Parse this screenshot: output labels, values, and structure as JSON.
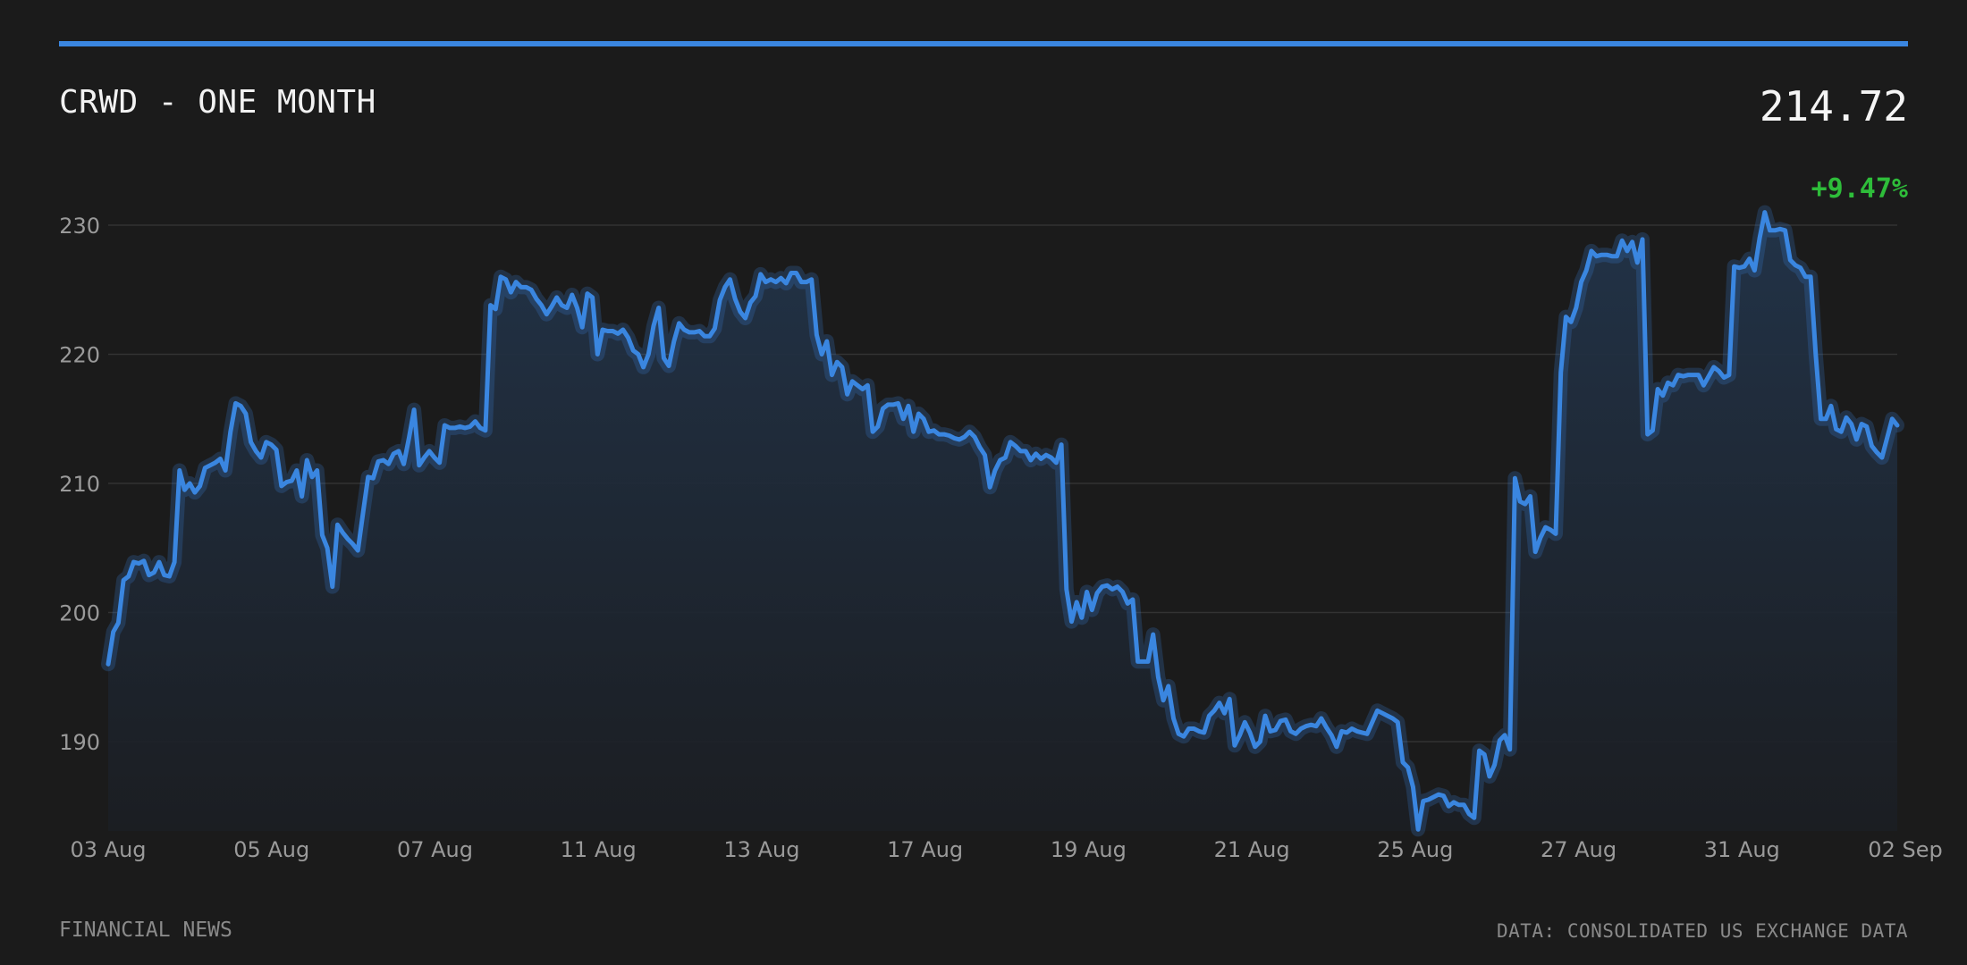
{
  "header": {
    "title": "CRWD - ONE MONTH",
    "price": "214.72",
    "change": "+9.47%"
  },
  "footer": {
    "source_left": "FINANCIAL NEWS",
    "source_right": "DATA: CONSOLIDATED US EXCHANGE DATA"
  },
  "colors": {
    "background": "#1b1b1b",
    "accent": "#3a86e0",
    "positive": "#2ebd3a",
    "grid": "#333333"
  },
  "chart_data": {
    "type": "area",
    "title": "CRWD - ONE MONTH",
    "xlabel": "",
    "ylabel": "",
    "ylim": [
      183,
      231
    ],
    "yticks": [
      190,
      200,
      210,
      220,
      230
    ],
    "grid": "horizontal",
    "x_tick_labels": [
      "03 Aug",
      "05 Aug",
      "07 Aug",
      "11 Aug",
      "13 Aug",
      "17 Aug",
      "19 Aug",
      "21 Aug",
      "25 Aug",
      "27 Aug",
      "31 Aug",
      "02 Sep"
    ],
    "series": [
      {
        "values": [
          196.0,
          198.5,
          199.2,
          202.5,
          202.8,
          203.9,
          203.8,
          204.0,
          202.9,
          203.1,
          203.9,
          202.9,
          202.8,
          203.9,
          211.0,
          209.5,
          210.0,
          209.3,
          209.8,
          211.2,
          211.4,
          211.6,
          211.9,
          211.0,
          214.0,
          216.2,
          216.0,
          215.4,
          213.2,
          212.5,
          212.0,
          213.2,
          213.0,
          212.6,
          209.8,
          210.1,
          210.2,
          211.0,
          209.0,
          211.8,
          210.5,
          211.0,
          206.0,
          205.0,
          202.0,
          206.8,
          206.2,
          205.7,
          205.3,
          204.8,
          207.7,
          210.5,
          210.4,
          211.7,
          211.8,
          211.5,
          212.3,
          212.5,
          211.5,
          213.5,
          215.7,
          211.4,
          212.0,
          212.5,
          212.0,
          211.6,
          214.5,
          214.3,
          214.3,
          214.4,
          214.3,
          214.4,
          214.8,
          214.3,
          214.1,
          223.8,
          223.5,
          226.0,
          225.8,
          224.8,
          225.6,
          225.2,
          225.2,
          225.0,
          224.3,
          223.8,
          223.1,
          223.7,
          224.4,
          223.8,
          223.6,
          224.6,
          223.6,
          222.1,
          224.7,
          224.4,
          220.0,
          221.9,
          221.8,
          221.8,
          221.6,
          221.9,
          221.3,
          220.3,
          220.0,
          219.0,
          220.0,
          222.2,
          223.6,
          219.7,
          219.1,
          221.0,
          222.4,
          221.9,
          221.7,
          221.7,
          221.8,
          221.4,
          221.4,
          222.0,
          224.2,
          225.2,
          225.8,
          224.3,
          223.3,
          222.8,
          224.0,
          224.5,
          226.2,
          225.6,
          225.8,
          225.6,
          225.9,
          225.5,
          226.3,
          226.3,
          225.6,
          225.6,
          225.8,
          221.5,
          220.0,
          221.0,
          218.4,
          219.4,
          219.0,
          216.9,
          217.9,
          217.6,
          217.3,
          217.6,
          214.0,
          214.4,
          215.8,
          216.1,
          216.1,
          216.2,
          215.0,
          216.0,
          214.0,
          215.4,
          215.0,
          214.0,
          214.1,
          213.8,
          213.8,
          213.7,
          213.5,
          213.4,
          213.6,
          214.0,
          213.6,
          212.8,
          212.2,
          209.7,
          211.0,
          211.8,
          212.0,
          213.2,
          212.9,
          212.5,
          212.5,
          211.8,
          212.3,
          211.9,
          212.2,
          212.0,
          211.6,
          213.0,
          201.8,
          199.3,
          200.8,
          199.6,
          201.6,
          200.2,
          201.5,
          202.0,
          202.1,
          201.8,
          202.0,
          201.6,
          200.7,
          201.0,
          196.2,
          196.2,
          196.2,
          198.3,
          195.0,
          193.2,
          194.3,
          191.8,
          190.6,
          190.4,
          191.0,
          191.0,
          190.8,
          190.7,
          192.0,
          192.4,
          193.0,
          192.2,
          193.3,
          189.7,
          190.5,
          191.5,
          190.7,
          189.6,
          190.0,
          192.0,
          190.8,
          190.9,
          191.6,
          191.7,
          190.8,
          190.6,
          191.0,
          191.2,
          191.3,
          191.2,
          191.8,
          191.1,
          190.5,
          189.6,
          190.8,
          190.7,
          191.0,
          190.8,
          190.7,
          190.6,
          191.5,
          192.4,
          192.2,
          192.0,
          191.8,
          191.5,
          188.4,
          188.0,
          186.5,
          183.2,
          185.4,
          185.5,
          185.7,
          185.9,
          185.8,
          185.0,
          185.3,
          185.1,
          185.1,
          184.4,
          184.1,
          189.3,
          189.0,
          187.3,
          188.2,
          190.1,
          190.5,
          189.4,
          210.4,
          208.6,
          208.4,
          209.0,
          204.7,
          205.8,
          206.6,
          206.4,
          206.1,
          218.6,
          222.9,
          222.5,
          223.6,
          225.6,
          226.5,
          228.0,
          227.6,
          227.7,
          227.7,
          227.6,
          227.6,
          228.8,
          228.0,
          228.7,
          227.1,
          228.9,
          213.8,
          214.1,
          217.3,
          216.8,
          217.8,
          217.6,
          218.4,
          218.3,
          218.4,
          218.4,
          218.4,
          217.6,
          218.3,
          219.0,
          218.7,
          218.2,
          218.4,
          226.8,
          226.7,
          226.8,
          227.4,
          226.5,
          229.0,
          231.0,
          229.6,
          229.6,
          229.7,
          229.6,
          227.3,
          226.9,
          226.7,
          226.0,
          226.0,
          220.0,
          215.0,
          215.0,
          216.0,
          214.2,
          214.0,
          215.1,
          214.6,
          213.4,
          214.6,
          214.4,
          212.9,
          212.4,
          212.0,
          213.5,
          215.0,
          214.5
        ]
      }
    ]
  }
}
